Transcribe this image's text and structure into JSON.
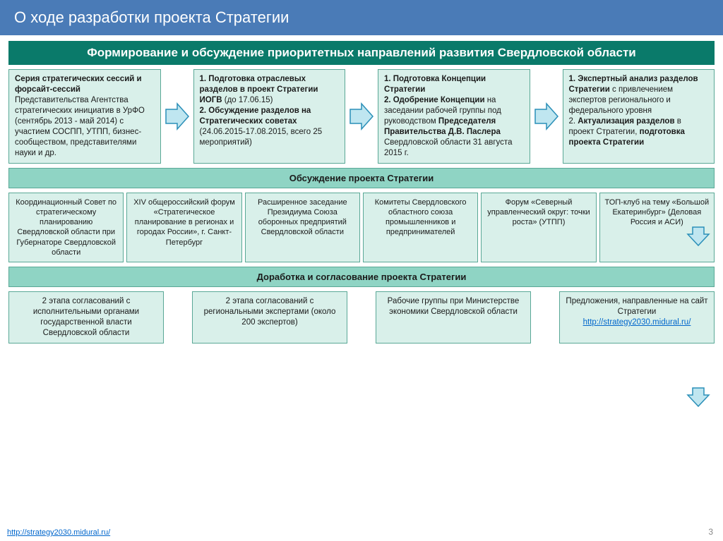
{
  "title": "О ходе разработки проекта Стратегии",
  "colors": {
    "title_bg": "#4a7bb7",
    "header_bg": "#0a7a6a",
    "sub_bg": "#8fd4c4",
    "box_bg": "#d9f0ea",
    "box_border": "#5aa896",
    "arrow_fill": "#bfe6f0",
    "arrow_stroke": "#2a8fb8",
    "link": "#0066cc"
  },
  "section1_header": "Формирование и обсуждение приоритетных направлений развития Свердловской области",
  "stage_boxes": [
    "<b>Серия стратегических сессий и форсайт-сессий</b> Представительства Агентства стратегических инициатив в УрФО  (сентябрь 2013 - май 2014) с участием СОСПП, УТПП, бизнес-сообществом, представителями науки и др.",
    "<b>1. Подготовка отраслевых разделов в проект Стратегии ИОГВ</b> (до 17.06.15)<br> <b>2. Обсуждение разделов на Стратегических советах</b> (24.06.2015-17.08.2015, всего 25 мероприятий)",
    "<b>1. Подготовка Концепции Стратегии<br>2. Одобрение Концепции</b> на заседании рабочей группы под руководством <b>Председателя Правительства Д.В. Паслера</b> Свердловской области 31 августа 2015 г.",
    "<b>1. Экспертный анализ разделов Стратегии</b> с привлечением экспертов регионального и федерального уровня<br>2.  <b>Актуализация разделов</b> в проект Стратегии, <b>подготовка проекта Стратегии</b>"
  ],
  "sub_header2": "Обсуждение проекта Стратегии",
  "discuss_boxes": [
    "Координационный Совет по стратегическому планированию Свердловской области при Губернаторе Свердловской области",
    "XIV общероссийский форум «Стратегическое планирование в регионах и городах России», г. Санкт-Петербург",
    "Расширенное заседание Президиума Союза оборонных предприятий Свердловской области",
    "Комитеты Свердловского областного союза промышленников и предпринимателей",
    "Форум «Северный управленческий округ: точки роста» (УТПП)",
    "ТОП-клуб на тему «Большой Екатеринбург» (Деловая Россия и АСИ)"
  ],
  "sub_header3": "Доработка и согласование проекта Стратегии",
  "final_boxes": [
    "2 этапа согласований с исполнительными органами государственной власти Свердловской области",
    "2 этапа согласований с региональными экспертами (около 200 экспертов)",
    "Рабочие группы при Министерстве экономики Свердловской области",
    "Предложения, направленные на сайт Стратегии <a class='link' href='#'>http://strategy2030.midural.ru/</a>"
  ],
  "footer_url": "http://strategy2030.midural.ru/",
  "page_number": "3"
}
